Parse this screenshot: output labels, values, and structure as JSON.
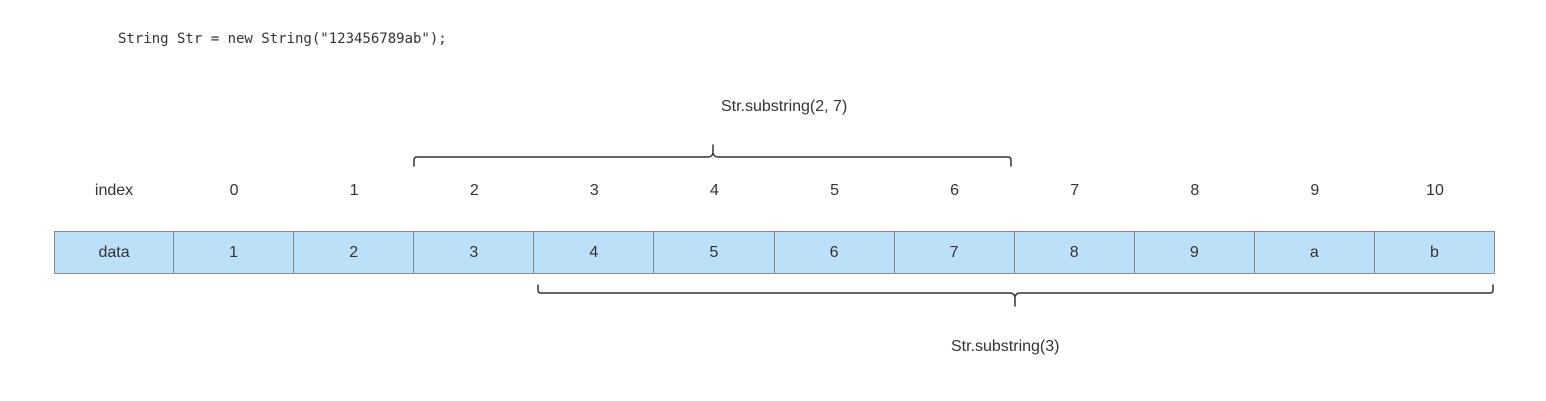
{
  "code": "String Str = new String(\"123456789ab\");",
  "index_row": {
    "header": "index",
    "values": [
      "0",
      "1",
      "2",
      "3",
      "4",
      "5",
      "6",
      "7",
      "8",
      "9",
      "10"
    ]
  },
  "data_row": {
    "header": "data",
    "values": [
      "1",
      "2",
      "3",
      "4",
      "5",
      "6",
      "7",
      "8",
      "9",
      "a",
      "b"
    ]
  },
  "annotations": {
    "substring_range": "Str.substring(2, 7)",
    "substring_from": "Str.substring(3)"
  },
  "colors": {
    "cell_fill": "#bde0f9",
    "cell_border": "#8a8a8a",
    "text": "#333333",
    "brace": "#333333"
  }
}
